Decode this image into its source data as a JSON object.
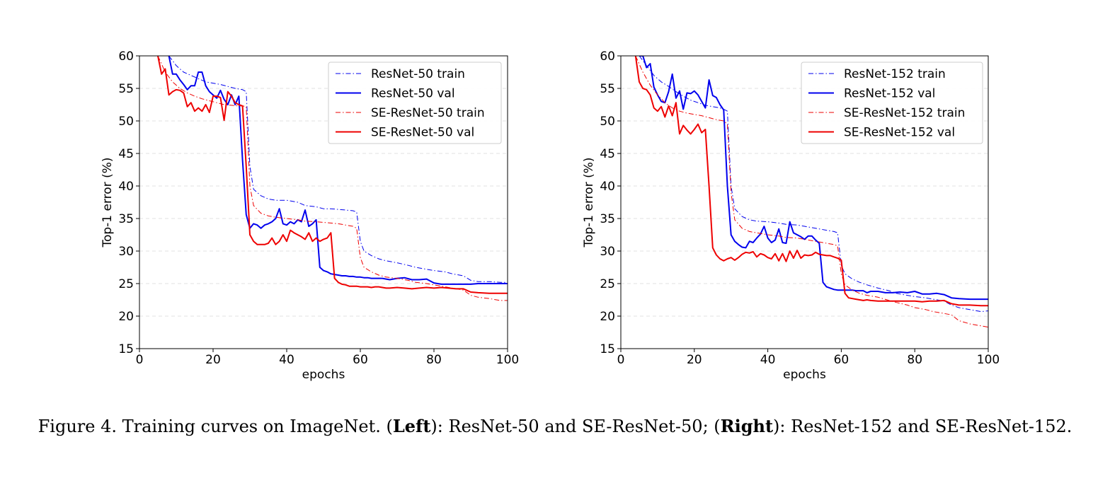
{
  "caption": {
    "prefix": "Figure 4. Training curves on ImageNet. (",
    "left_bold": "Left",
    "middle": "): ResNet-50 and SE-ResNet-50; (",
    "right_bold": "Right",
    "suffix": "): ResNet-152 and SE-ResNet-152."
  },
  "colors": {
    "resnet": "#0000ee",
    "se_resnet": "#ee0000"
  },
  "chart_data": [
    {
      "type": "line",
      "xlabel": "epochs",
      "ylabel": "Top-1 error (%)",
      "xlim": [
        0,
        100
      ],
      "ylim": [
        15,
        60
      ],
      "xticks": [
        "0",
        "20",
        "40",
        "60",
        "80",
        "100"
      ],
      "yticks": [
        "15",
        "20",
        "25",
        "30",
        "35",
        "40",
        "45",
        "50",
        "55",
        "60"
      ],
      "grid": "horizontal dashed",
      "legend_position": "top-right",
      "series": [
        {
          "name": "ResNet-50 train",
          "color": "#0000ee",
          "style": "dashdot",
          "x": [
            8,
            10,
            12,
            14,
            16,
            18,
            20,
            22,
            24,
            26,
            28,
            29,
            30,
            31,
            33,
            35,
            37,
            40,
            43,
            45,
            48,
            50,
            52,
            54,
            56,
            58,
            59,
            60,
            61,
            63,
            65,
            67,
            70,
            73,
            75,
            78,
            80,
            83,
            85,
            88,
            90,
            92,
            95,
            98,
            100
          ],
          "y": [
            60,
            58.5,
            57.5,
            57,
            56.5,
            56,
            55.8,
            55.6,
            55.3,
            55,
            54.8,
            54.5,
            43,
            39.5,
            38.5,
            38,
            37.8,
            37.8,
            37.5,
            37,
            36.8,
            36.5,
            36.5,
            36.4,
            36.3,
            36.2,
            36,
            31.5,
            30,
            29.3,
            28.8,
            28.5,
            28.2,
            27.8,
            27.5,
            27.2,
            27,
            26.8,
            26.5,
            26.2,
            25.5,
            25.3,
            25.3,
            25.2,
            25.2
          ]
        },
        {
          "name": "ResNet-50 val",
          "color": "#0000ee",
          "style": "solid",
          "x": [
            8,
            9,
            10,
            11,
            12,
            13,
            14,
            15,
            16,
            17,
            18,
            19,
            20,
            21,
            22,
            23,
            24,
            25,
            26,
            27,
            28,
            29,
            30,
            31,
            32,
            33,
            34,
            35,
            36,
            37,
            38,
            39,
            40,
            41,
            42,
            43,
            44,
            45,
            46,
            47,
            48,
            49,
            50,
            51,
            52,
            53,
            54,
            55,
            56,
            57,
            58,
            59,
            60,
            61,
            62,
            63,
            64,
            65,
            66,
            67,
            68,
            70,
            72,
            74,
            76,
            78,
            80,
            82,
            84,
            86,
            88,
            90,
            92,
            95,
            98,
            100
          ],
          "y": [
            60,
            57.2,
            57.2,
            56.3,
            55.6,
            54.8,
            55.4,
            55.4,
            57.5,
            57.5,
            55.4,
            54.5,
            54,
            53.5,
            54.7,
            53.3,
            52.5,
            54,
            52.5,
            53.8,
            44,
            35.6,
            33.5,
            34.2,
            34,
            33.5,
            34,
            34.2,
            34.5,
            35,
            36.5,
            34.2,
            34,
            34.5,
            34.2,
            34.8,
            34.5,
            36.3,
            33.8,
            34.2,
            34.8,
            27.5,
            27,
            26.8,
            26.5,
            26.4,
            26.3,
            26.2,
            26.2,
            26.1,
            26.1,
            26,
            26,
            25.9,
            25.9,
            25.8,
            25.8,
            25.8,
            25.8,
            25.7,
            25.6,
            25.8,
            25.9,
            25.6,
            25.6,
            25.7,
            25.1,
            24.9,
            24.9,
            24.9,
            24.9,
            24.9,
            25,
            25,
            25,
            25
          ]
        },
        {
          "name": "SE-ResNet-50 train",
          "color": "#ee0000",
          "style": "dashdot",
          "x": [
            5,
            7,
            9,
            11,
            13,
            15,
            17,
            19,
            21,
            23,
            25,
            27,
            28,
            29,
            30,
            31,
            33,
            35,
            37,
            40,
            43,
            45,
            48,
            50,
            52,
            54,
            56,
            58,
            59,
            60,
            61,
            63,
            65,
            67,
            70,
            73,
            75,
            78,
            80,
            83,
            85,
            88,
            90,
            92,
            95,
            98,
            100
          ],
          "y": [
            60,
            57.5,
            56,
            55,
            54.3,
            53.8,
            53.4,
            53.1,
            52.8,
            52.5,
            52.4,
            52.3,
            52.3,
            52.2,
            40,
            37,
            35.8,
            35.4,
            35.2,
            35,
            34.8,
            34.6,
            34.5,
            34.4,
            34.3,
            34.2,
            34,
            33.8,
            33.5,
            29,
            27.5,
            26.8,
            26.3,
            26,
            25.8,
            25.5,
            25.2,
            25,
            24.8,
            24.5,
            24.3,
            24,
            23.2,
            22.9,
            22.7,
            22.4,
            22.4
          ]
        },
        {
          "name": "SE-ResNet-50 val",
          "color": "#ee0000",
          "style": "solid",
          "x": [
            5,
            6,
            7,
            8,
            9,
            10,
            11,
            12,
            13,
            14,
            15,
            16,
            17,
            18,
            19,
            20,
            21,
            22,
            23,
            24,
            25,
            26,
            27,
            28,
            29,
            30,
            31,
            32,
            33,
            34,
            35,
            36,
            37,
            38,
            39,
            40,
            41,
            42,
            43,
            44,
            45,
            46,
            47,
            48,
            49,
            50,
            51,
            52,
            53,
            54,
            55,
            56,
            57,
            58,
            59,
            60,
            61,
            62,
            63,
            64,
            65,
            66,
            67,
            68,
            70,
            72,
            74,
            76,
            78,
            80,
            82,
            84,
            86,
            88,
            90,
            92,
            95,
            98,
            100
          ],
          "y": [
            60,
            57.2,
            58,
            54,
            54.5,
            54.8,
            54.7,
            54.3,
            52.2,
            52.8,
            51.5,
            52,
            51.5,
            52.5,
            51.3,
            53.8,
            53.8,
            53.6,
            50.1,
            54.5,
            53.8,
            52.8,
            52.5,
            52.3,
            43,
            32.5,
            31.5,
            31,
            31,
            31,
            31.2,
            32,
            31,
            31.5,
            32.5,
            31.5,
            33.2,
            32.8,
            32.5,
            32.2,
            31.8,
            32.8,
            31.5,
            32,
            31.5,
            31.8,
            32,
            32.8,
            25.8,
            25.2,
            24.9,
            24.8,
            24.6,
            24.6,
            24.6,
            24.5,
            24.5,
            24.5,
            24.4,
            24.5,
            24.5,
            24.4,
            24.3,
            24.3,
            24.4,
            24.3,
            24.2,
            24.3,
            24.4,
            24.3,
            24.4,
            24.3,
            24.2,
            24.2,
            23.7,
            23.6,
            23.5,
            23.5,
            23.5
          ]
        }
      ]
    },
    {
      "type": "line",
      "xlabel": "epochs",
      "ylabel": "Top-1 error (%)",
      "xlim": [
        0,
        100
      ],
      "ylim": [
        15,
        60
      ],
      "xticks": [
        "0",
        "20",
        "40",
        "60",
        "80",
        "100"
      ],
      "yticks": [
        "15",
        "20",
        "25",
        "30",
        "35",
        "40",
        "45",
        "50",
        "55",
        "60"
      ],
      "grid": "horizontal dashed",
      "legend_position": "top-right",
      "series": [
        {
          "name": "ResNet-152 train",
          "color": "#0000ee",
          "style": "dashdot",
          "x": [
            5,
            7,
            9,
            11,
            13,
            15,
            17,
            19,
            21,
            23,
            25,
            27,
            28,
            29,
            30,
            31,
            33,
            35,
            37,
            40,
            43,
            45,
            48,
            50,
            52,
            54,
            56,
            58,
            59,
            60,
            61,
            63,
            65,
            67,
            70,
            73,
            75,
            78,
            80,
            83,
            85,
            88,
            90,
            92,
            95,
            98,
            100
          ],
          "y": [
            60,
            58.5,
            57,
            56,
            55.3,
            54.5,
            53.8,
            53.2,
            52.8,
            52.4,
            52.2,
            52,
            51.8,
            51.5,
            40,
            36.5,
            35.3,
            34.8,
            34.6,
            34.5,
            34.3,
            34.1,
            34,
            33.8,
            33.6,
            33.4,
            33.2,
            33,
            32.8,
            27.8,
            26.5,
            25.7,
            25.2,
            24.8,
            24.3,
            23.9,
            23.5,
            23.2,
            23,
            22.8,
            22.6,
            22.3,
            21.7,
            21.3,
            21,
            20.7,
            20.8
          ]
        },
        {
          "name": "ResNet-152 val",
          "color": "#0000ee",
          "style": "solid",
          "x": [
            5,
            6,
            7,
            8,
            9,
            10,
            11,
            12,
            13,
            14,
            15,
            16,
            17,
            18,
            19,
            20,
            21,
            22,
            23,
            24,
            25,
            26,
            27,
            28,
            29,
            30,
            31,
            32,
            33,
            34,
            35,
            36,
            37,
            38,
            39,
            40,
            41,
            42,
            43,
            44,
            45,
            46,
            47,
            48,
            49,
            50,
            51,
            52,
            53,
            54,
            55,
            56,
            57,
            58,
            59,
            60,
            61,
            62,
            63,
            64,
            65,
            66,
            67,
            68,
            70,
            72,
            74,
            76,
            78,
            80,
            82,
            84,
            86,
            88,
            90,
            92,
            95,
            98,
            100
          ],
          "y": [
            60,
            60,
            58.2,
            58.8,
            55.2,
            54,
            53,
            52.8,
            54.5,
            57.2,
            53.5,
            54.6,
            51.8,
            54.3,
            54.2,
            54.6,
            54,
            53,
            52,
            56.3,
            53.9,
            53.6,
            52.5,
            51.7,
            40,
            32.5,
            31.5,
            31,
            30.6,
            30.5,
            31.5,
            31.3,
            32,
            32.6,
            33.8,
            32,
            31.3,
            31.7,
            33.4,
            31.3,
            31.2,
            34.5,
            32.8,
            32.5,
            32.2,
            31.8,
            32.3,
            32.3,
            31.7,
            31.2,
            25.2,
            24.5,
            24.3,
            24.1,
            24,
            24,
            24,
            24,
            24,
            23.9,
            23.9,
            23.9,
            23.6,
            23.8,
            23.8,
            23.6,
            23.6,
            23.7,
            23.6,
            23.8,
            23.4,
            23.4,
            23.5,
            23.3,
            22.8,
            22.7,
            22.6,
            22.6,
            22.6
          ]
        },
        {
          "name": "SE-ResNet-152 train",
          "color": "#ee0000",
          "style": "dashdot",
          "x": [
            4,
            6,
            8,
            10,
            12,
            14,
            16,
            18,
            20,
            22,
            24,
            26,
            28,
            29,
            30,
            31,
            33,
            35,
            37,
            40,
            43,
            45,
            48,
            50,
            52,
            54,
            56,
            58,
            59,
            60,
            61,
            63,
            65,
            67,
            70,
            73,
            75,
            78,
            80,
            83,
            85,
            88,
            90,
            92,
            95,
            98,
            100
          ],
          "y": [
            60,
            57.5,
            55.5,
            54,
            52.8,
            52,
            51.5,
            51.2,
            51,
            50.8,
            50.5,
            50.2,
            50,
            49.5,
            39,
            34.8,
            33.5,
            33,
            32.8,
            32.5,
            32.3,
            32.1,
            32,
            31.8,
            31.6,
            31.4,
            31.2,
            31,
            30.8,
            26.5,
            24.8,
            24,
            23.5,
            23.2,
            22.9,
            22.4,
            22.1,
            21.7,
            21.3,
            21,
            20.7,
            20.4,
            20.2,
            19.3,
            18.8,
            18.5,
            18.3
          ]
        },
        {
          "name": "SE-ResNet-152 val",
          "color": "#ee0000",
          "style": "solid",
          "x": [
            4,
            5,
            6,
            7,
            8,
            9,
            10,
            11,
            12,
            13,
            14,
            15,
            16,
            17,
            18,
            19,
            20,
            21,
            22,
            23,
            24,
            25,
            26,
            27,
            28,
            29,
            30,
            31,
            32,
            33,
            34,
            35,
            36,
            37,
            38,
            39,
            40,
            41,
            42,
            43,
            44,
            45,
            46,
            47,
            48,
            49,
            50,
            51,
            52,
            53,
            54,
            55,
            56,
            57,
            58,
            59,
            60,
            61,
            62,
            63,
            64,
            65,
            66,
            67,
            68,
            70,
            72,
            74,
            76,
            78,
            80,
            82,
            84,
            86,
            88,
            90,
            92,
            95,
            98,
            100
          ],
          "y": [
            60,
            56,
            55,
            54.8,
            54,
            52,
            51.5,
            52.2,
            50.6,
            52.3,
            50.8,
            52.8,
            48,
            49.3,
            48.6,
            48,
            48.7,
            49.5,
            48.2,
            48.7,
            40,
            30.5,
            29.4,
            28.8,
            28.5,
            28.8,
            29,
            28.6,
            29,
            29.5,
            29.8,
            29.7,
            29.9,
            29.1,
            29.6,
            29.4,
            29,
            28.8,
            29.6,
            28.5,
            29.6,
            28.4,
            30,
            28.9,
            30.1,
            28.9,
            29.4,
            29.3,
            29.4,
            29.8,
            29.5,
            29.4,
            29.3,
            29.3,
            29.1,
            28.9,
            28.6,
            23.5,
            22.8,
            22.7,
            22.6,
            22.5,
            22.4,
            22.5,
            22.4,
            22.3,
            22.3,
            22.3,
            22.3,
            22.3,
            22.3,
            22.2,
            22.3,
            22.3,
            22.4,
            21.9,
            21.7,
            21.7,
            21.6,
            21.6
          ]
        }
      ]
    }
  ]
}
